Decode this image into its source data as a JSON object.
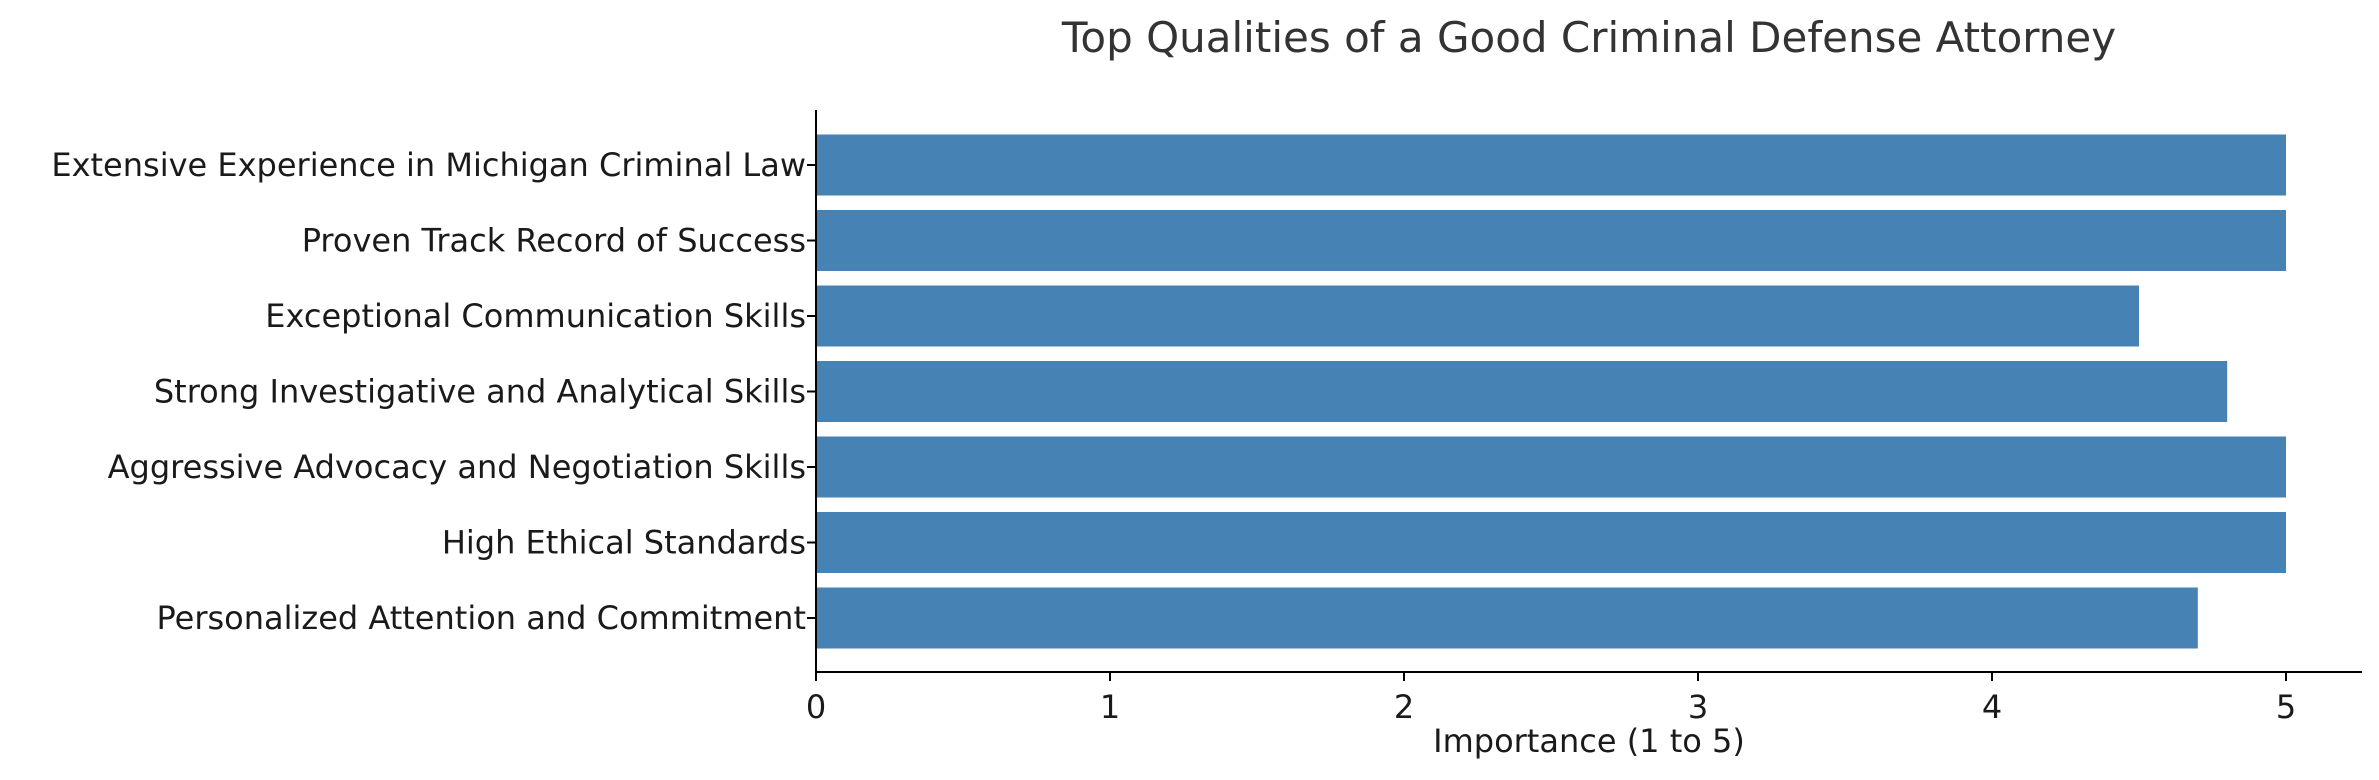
{
  "chart_data": {
    "type": "bar",
    "orientation": "horizontal",
    "title": "Top Qualities of a Good Criminal Defense Attorney",
    "xlabel": "Importance (1 to 5)",
    "ylabel": "",
    "categories": [
      "Extensive Experience in Michigan Criminal Law",
      "Proven Track Record of Success",
      "Exceptional Communication Skills",
      "Strong Investigative and Analytical Skills",
      "Aggressive Advocacy and Negotiation Skills",
      "High Ethical Standards",
      "Personalized Attention and Commitment"
    ],
    "values": [
      5,
      5,
      4.5,
      4.8,
      5,
      5,
      4.7
    ],
    "xlim": [
      0,
      5.25
    ],
    "xticks": [
      0,
      1,
      2,
      3,
      4,
      5
    ],
    "grid": false,
    "legend": "none",
    "bar_color": "#4682b4"
  }
}
